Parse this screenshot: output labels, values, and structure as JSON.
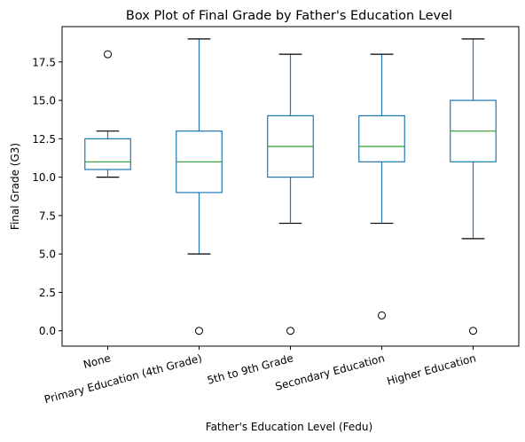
{
  "chart_data": {
    "type": "box",
    "title": "Box Plot of Final Grade by Father's Education Level",
    "xlabel": "Father's Education Level (Fedu)",
    "ylabel": "Final Grade (G3)",
    "ylim": [
      -1.0,
      19.8
    ],
    "yticks": [
      0.0,
      2.5,
      5.0,
      7.5,
      10.0,
      12.5,
      15.0,
      17.5
    ],
    "ytick_labels": [
      "0.0",
      "2.5",
      "5.0",
      "7.5",
      "10.0",
      "12.5",
      "15.0",
      "17.5"
    ],
    "grid": false,
    "box_color": "#1f77b4",
    "median_color": "#2ca02c",
    "categories": [
      "None",
      "Primary Education (4th Grade)",
      "5th to 9th Grade",
      "Secondary Education",
      "Higher Education"
    ],
    "boxes": [
      {
        "category": "None",
        "whislo": 10,
        "q1": 10.5,
        "med": 11,
        "q3": 12.5,
        "whishi": 13,
        "fliers": [
          18
        ]
      },
      {
        "category": "Primary Education (4th Grade)",
        "whislo": 5,
        "q1": 9,
        "med": 11,
        "q3": 13,
        "whishi": 19,
        "fliers": [
          0
        ]
      },
      {
        "category": "5th to 9th Grade",
        "whislo": 7,
        "q1": 10,
        "med": 12,
        "q3": 14,
        "whishi": 18,
        "fliers": [
          0
        ]
      },
      {
        "category": "Secondary Education",
        "whislo": 7,
        "q1": 11,
        "med": 12,
        "q3": 14,
        "whishi": 18,
        "fliers": [
          1
        ]
      },
      {
        "category": "Higher Education",
        "whislo": 6,
        "q1": 11,
        "med": 13,
        "q3": 15,
        "whishi": 19,
        "fliers": [
          0
        ]
      }
    ]
  }
}
